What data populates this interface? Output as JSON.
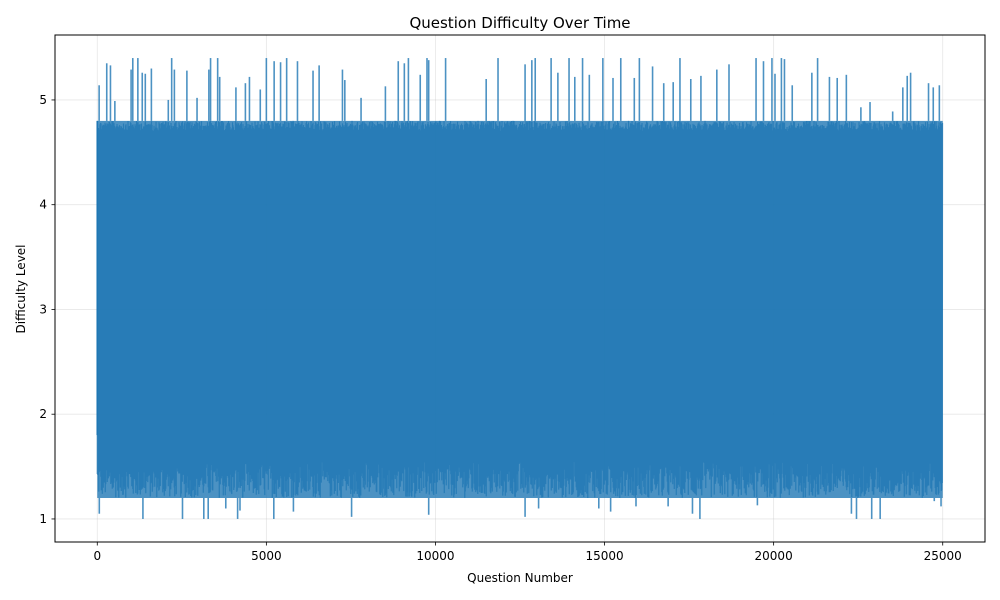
{
  "chart_data": {
    "type": "line",
    "title": "Question Difficulty Over Time",
    "xlabel": "Question Number",
    "ylabel": "Difficulty Level",
    "xlim": [
      -1250,
      26250
    ],
    "ylim": [
      0.78,
      5.62
    ],
    "xticks": [
      0,
      5000,
      10000,
      15000,
      20000,
      25000
    ],
    "yticks": [
      1,
      2,
      3,
      4,
      5
    ],
    "grid": true,
    "legend": "none",
    "series": [
      {
        "color": "#1f77b4",
        "opacity": 0.8,
        "n_points": 25000,
        "x_range": [
          0,
          25000
        ],
        "band_low": 1.2,
        "band_high": 4.8,
        "spikes_high": [
          [
            55,
            5.14
          ],
          [
            280,
            5.35
          ],
          [
            390,
            5.33
          ],
          [
            520,
            4.99
          ],
          [
            1000,
            5.29
          ],
          [
            1050,
            5.4
          ],
          [
            1200,
            5.4
          ],
          [
            1330,
            5.26
          ],
          [
            1420,
            5.25
          ],
          [
            1600,
            5.3
          ],
          [
            2100,
            5.0
          ],
          [
            2200,
            5.4
          ],
          [
            2280,
            5.29
          ],
          [
            2650,
            5.28
          ],
          [
            2950,
            5.02
          ],
          [
            3300,
            5.29
          ],
          [
            3350,
            5.4
          ],
          [
            3560,
            5.4
          ],
          [
            3620,
            5.22
          ],
          [
            4100,
            5.12
          ],
          [
            4380,
            5.16
          ],
          [
            4500,
            5.22
          ],
          [
            4820,
            5.1
          ],
          [
            5000,
            5.4
          ],
          [
            5230,
            5.37
          ],
          [
            5420,
            5.36
          ],
          [
            5600,
            5.4
          ],
          [
            5920,
            5.37
          ],
          [
            6380,
            5.28
          ],
          [
            6560,
            5.33
          ],
          [
            7250,
            5.29
          ],
          [
            7320,
            5.19
          ],
          [
            7800,
            5.02
          ],
          [
            8520,
            5.13
          ],
          [
            8900,
            5.37
          ],
          [
            9080,
            5.35
          ],
          [
            9200,
            5.4
          ],
          [
            9550,
            5.24
          ],
          [
            9800,
            5.38
          ],
          [
            9750,
            5.4
          ],
          [
            10300,
            5.4
          ],
          [
            11500,
            5.2
          ],
          [
            11850,
            5.4
          ],
          [
            12650,
            5.34
          ],
          [
            12850,
            5.38
          ],
          [
            12950,
            5.4
          ],
          [
            13420,
            5.4
          ],
          [
            13620,
            5.26
          ],
          [
            13950,
            5.4
          ],
          [
            14120,
            5.22
          ],
          [
            14350,
            5.4
          ],
          [
            14550,
            5.24
          ],
          [
            14950,
            5.4
          ],
          [
            15250,
            5.21
          ],
          [
            15480,
            5.4
          ],
          [
            15880,
            5.21
          ],
          [
            16030,
            5.4
          ],
          [
            16420,
            5.32
          ],
          [
            16750,
            5.16
          ],
          [
            17030,
            5.17
          ],
          [
            17230,
            5.4
          ],
          [
            17550,
            5.2
          ],
          [
            17850,
            5.23
          ],
          [
            18320,
            5.29
          ],
          [
            18680,
            5.34
          ],
          [
            19480,
            5.4
          ],
          [
            19700,
            5.37
          ],
          [
            19950,
            5.4
          ],
          [
            20040,
            5.25
          ],
          [
            20230,
            5.4
          ],
          [
            20320,
            5.39
          ],
          [
            20550,
            5.14
          ],
          [
            21130,
            5.26
          ],
          [
            21300,
            5.4
          ],
          [
            21650,
            5.22
          ],
          [
            21880,
            5.21
          ],
          [
            22150,
            5.24
          ],
          [
            22580,
            4.93
          ],
          [
            22850,
            4.98
          ],
          [
            23520,
            4.89
          ],
          [
            23820,
            5.12
          ],
          [
            23950,
            5.23
          ],
          [
            24050,
            5.26
          ],
          [
            24580,
            5.16
          ],
          [
            24720,
            5.12
          ],
          [
            24900,
            5.14
          ]
        ],
        "spikes_low": [
          [
            60,
            1.05
          ],
          [
            1350,
            1.0
          ],
          [
            2520,
            1.0
          ],
          [
            3150,
            1.0
          ],
          [
            3280,
            1.0
          ],
          [
            3800,
            1.1
          ],
          [
            4150,
            1.0
          ],
          [
            4220,
            1.08
          ],
          [
            5220,
            1.0
          ],
          [
            5800,
            1.07
          ],
          [
            7520,
            1.02
          ],
          [
            9800,
            1.04
          ],
          [
            12650,
            1.02
          ],
          [
            13050,
            1.1
          ],
          [
            14830,
            1.1
          ],
          [
            15180,
            1.07
          ],
          [
            15930,
            1.12
          ],
          [
            16880,
            1.12
          ],
          [
            17600,
            1.05
          ],
          [
            17820,
            1.0
          ],
          [
            19520,
            1.13
          ],
          [
            22300,
            1.05
          ],
          [
            22450,
            1.0
          ],
          [
            22900,
            1.0
          ],
          [
            23150,
            1.0
          ],
          [
            24750,
            1.17
          ],
          [
            24950,
            1.12
          ]
        ]
      }
    ]
  }
}
